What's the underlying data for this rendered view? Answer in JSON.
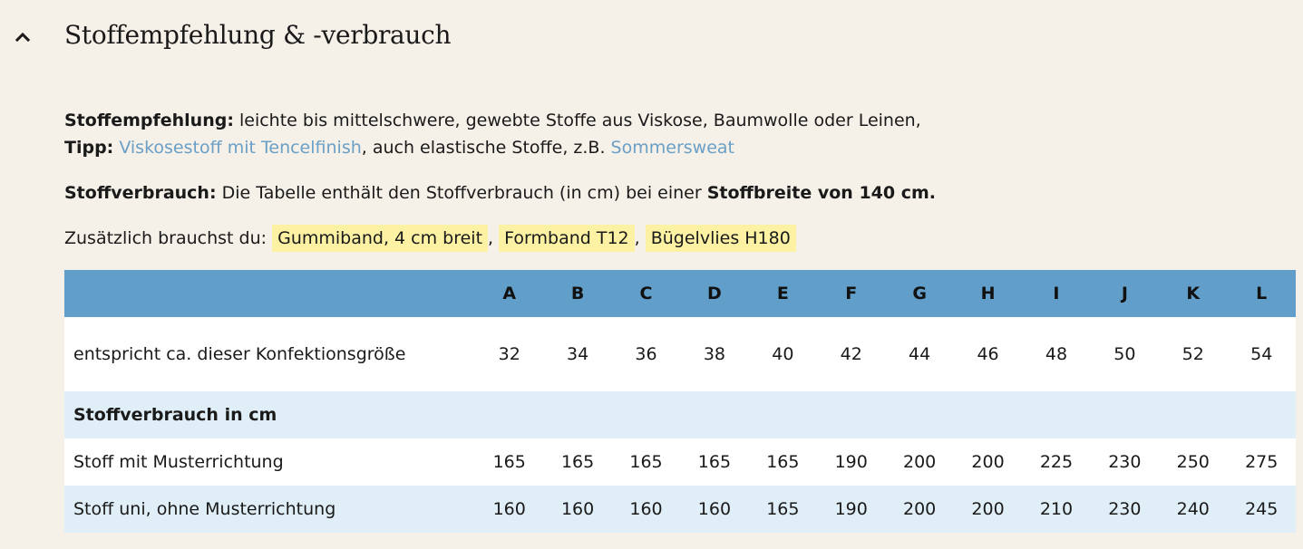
{
  "section": {
    "title": "Stoffempfehlung & -verbrauch",
    "toggle_icon": "chevron-up-icon"
  },
  "recommendation": {
    "label": "Stoffempfehlung:",
    "text": " leichte bis mittelschwere, gewebte Stoffe aus Viskose, Baumwolle oder Leinen,",
    "tip_label": "Tipp:",
    "tip_link1": "Viskosestoff mit Tencelfinish",
    "tip_mid": ", auch elastische Stoffe, z.B. ",
    "tip_link2": "Sommersweat"
  },
  "consumption": {
    "label": "Stoffverbrauch:",
    "text": " Die Tabelle enthält den Stoffverbrauch (in cm) bei einer ",
    "emphasis": "Stoffbreite von 140 cm."
  },
  "extras": {
    "label": "Zusätzlich brauchst du: ",
    "items": [
      "Gummiband, 4 cm breit",
      "Formband T12",
      "Bügelvlies H180"
    ],
    "separator": ","
  },
  "colors": {
    "background": "#f5f0e8",
    "table_header": "#619ec9",
    "table_alt_row": "#e0eef7",
    "link": "#6a9fc6",
    "tag_highlight": "#fdf2a3"
  },
  "table": {
    "headers": [
      "",
      "A",
      "B",
      "C",
      "D",
      "E",
      "F",
      "G",
      "H",
      "I",
      "J",
      "K",
      "L"
    ],
    "size_row": {
      "label": "entspricht ca. dieser Konfektionsgröße",
      "values": [
        "32",
        "34",
        "36",
        "38",
        "40",
        "42",
        "44",
        "46",
        "48",
        "50",
        "52",
        "54"
      ]
    },
    "group_row": {
      "label": "Stoffverbrauch in cm"
    },
    "rows": [
      {
        "label": "Stoff mit Musterrichtung",
        "values": [
          "165",
          "165",
          "165",
          "165",
          "165",
          "190",
          "200",
          "200",
          "225",
          "230",
          "250",
          "275"
        ]
      },
      {
        "label": "Stoff uni, ohne Musterrichtung",
        "values": [
          "160",
          "160",
          "160",
          "160",
          "165",
          "190",
          "200",
          "200",
          "210",
          "230",
          "240",
          "245"
        ]
      }
    ]
  }
}
